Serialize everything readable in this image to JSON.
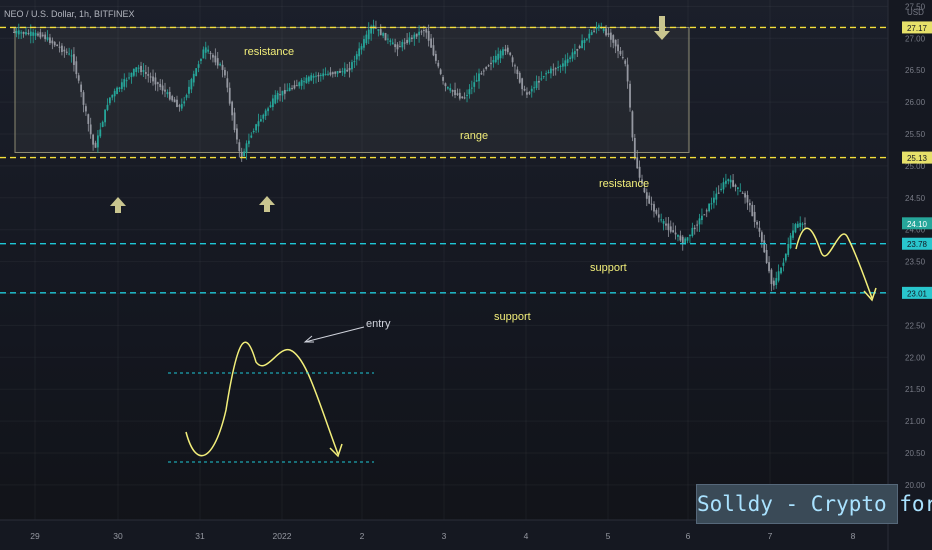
{
  "header": {
    "symbol_line": "NEO / U.S. Dollar, 1h, BITFINEX",
    "price_unit": "USD"
  },
  "watermark": {
    "text": "Solldy - Crypto for U"
  },
  "colors": {
    "up": "#26a69a",
    "down": "#9598a1",
    "resistance_line": "#f5e03a",
    "support_line": "#1ec7d6",
    "annotation": "#f2ee7a",
    "arrow": "#c9c58f",
    "range_box": "#8c8a72",
    "label_bg": "#e7e16a",
    "support_label_bg": "#29c6cd"
  },
  "chart_data": {
    "type": "candlestick",
    "x_ticks": [
      "29",
      "30",
      "31",
      "2022",
      "2",
      "3",
      "4",
      "5",
      "6",
      "7",
      "8"
    ],
    "y_ticks": [
      "27.50",
      "27.00",
      "26.50",
      "26.00",
      "25.50",
      "25.00",
      "24.50",
      "24.00",
      "23.50",
      "23.00",
      "22.50",
      "22.00",
      "21.50",
      "21.00",
      "20.50",
      "20.00"
    ],
    "ylim": [
      19.45,
      27.6
    ],
    "levels": [
      {
        "value": 27.17,
        "label": "27.17",
        "kind": "resistance"
      },
      {
        "value": 25.13,
        "label": "25.13",
        "kind": "resistance"
      },
      {
        "value": 23.78,
        "label": "23.78",
        "kind": "support"
      },
      {
        "value": 23.01,
        "label": "23.01",
        "kind": "support"
      }
    ],
    "last_price": {
      "value": 24.1,
      "label": "24.10"
    },
    "range_box": {
      "x_from": "28 Dec",
      "x_to": "5 Jan",
      "y_range": [
        25.21,
        27.17
      ]
    },
    "annotations": [
      {
        "text": "resistance",
        "near_value": 27.05
      },
      {
        "text": "range",
        "near_value": 25.9
      },
      {
        "text": "resistance",
        "near_value": 24.95
      },
      {
        "text": "support",
        "near_value": 23.58
      },
      {
        "text": "support",
        "near_value": 22.8
      },
      {
        "text": "entry",
        "near_value": 22.65
      }
    ],
    "approx_path": [
      [
        0,
        27.1
      ],
      [
        12,
        27.05
      ],
      [
        25,
        26.7
      ],
      [
        34,
        25.25
      ],
      [
        40,
        26.05
      ],
      [
        52,
        26.55
      ],
      [
        60,
        26.3
      ],
      [
        70,
        25.9
      ],
      [
        80,
        26.85
      ],
      [
        88,
        26.5
      ],
      [
        95,
        25.1
      ],
      [
        100,
        25.55
      ],
      [
        110,
        26.1
      ],
      [
        125,
        26.4
      ],
      [
        140,
        26.5
      ],
      [
        150,
        27.2
      ],
      [
        160,
        26.85
      ],
      [
        172,
        27.15
      ],
      [
        180,
        26.25
      ],
      [
        188,
        26.05
      ],
      [
        196,
        26.5
      ],
      [
        206,
        26.85
      ],
      [
        214,
        26.1
      ],
      [
        222,
        26.45
      ],
      [
        230,
        26.6
      ],
      [
        238,
        26.95
      ],
      [
        244,
        27.2
      ],
      [
        250,
        27.0
      ],
      [
        256,
        26.55
      ],
      [
        259,
        25.2
      ],
      [
        263,
        24.6
      ],
      [
        270,
        24.15
      ],
      [
        280,
        23.8
      ],
      [
        290,
        24.35
      ],
      [
        298,
        24.8
      ],
      [
        306,
        24.5
      ],
      [
        312,
        23.9
      ],
      [
        317,
        23.1
      ],
      [
        321,
        23.45
      ],
      [
        326,
        24.05
      ],
      [
        330,
        24.1
      ]
    ]
  }
}
